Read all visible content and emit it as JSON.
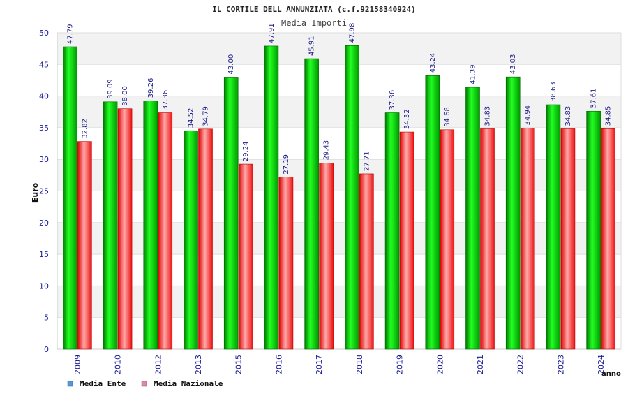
{
  "chart_data": {
    "type": "bar",
    "title": "IL CORTILE DELL ANNUNZIATA (c.f.92158340924)",
    "subtitle": "Media Importi",
    "ylabel": "Euro",
    "xlabel": "anno",
    "ylim": [
      0,
      50
    ],
    "yticks": [
      0,
      5,
      10,
      15,
      20,
      25,
      30,
      35,
      40,
      45,
      50
    ],
    "grid": true,
    "legend_position": "bottom-left",
    "categories": [
      "2009",
      "2010",
      "2012",
      "2013",
      "2015",
      "2016",
      "2017",
      "2018",
      "2019",
      "2020",
      "2021",
      "2022",
      "2023",
      "2024"
    ],
    "series": [
      {
        "name": "Media Ente",
        "legend_color": "#5599dd",
        "bar_color": "#00cc00",
        "values": [
          47.79,
          39.09,
          39.26,
          34.52,
          43.0,
          47.91,
          45.91,
          47.98,
          37.36,
          43.24,
          41.39,
          43.03,
          38.63,
          37.61
        ],
        "labels": [
          "47.79",
          "39.09",
          "39.26",
          "34.52",
          "43.00",
          "47.91",
          "45.91",
          "47.98",
          "37.36",
          "43.24",
          "41.39",
          "43.03",
          "38.63",
          "37.61"
        ]
      },
      {
        "name": "Media Nazionale",
        "legend_color": "#dd88aa",
        "bar_color": "#ee2222",
        "values": [
          32.82,
          38.0,
          37.36,
          34.79,
          29.24,
          27.19,
          29.43,
          27.71,
          34.32,
          34.68,
          34.83,
          34.94,
          34.83,
          34.85
        ],
        "labels": [
          "32.82",
          "38.00",
          "37.36",
          "34.79",
          "29.24",
          "27.19",
          "29.43",
          "27.71",
          "34.32",
          "34.68",
          "34.83",
          "34.94",
          "34.83",
          "34.85"
        ]
      }
    ]
  }
}
